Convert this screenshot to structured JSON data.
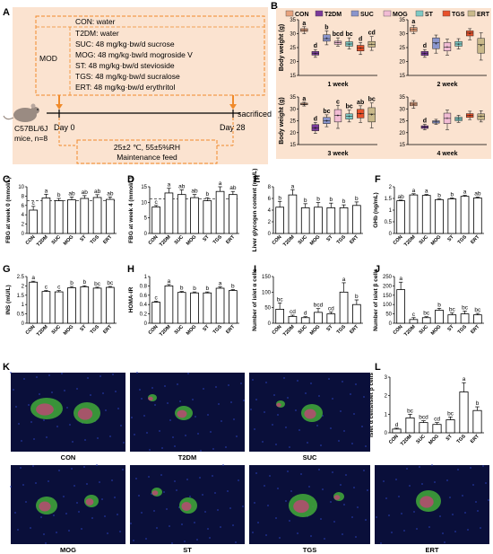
{
  "groups": [
    "CON",
    "T2DM",
    "SUC",
    "MOG",
    "ST",
    "TGS",
    "ERT"
  ],
  "group_colors": [
    "#e8a37e",
    "#7a3a9a",
    "#8a95cc",
    "#f2bcd4",
    "#7fc9c4",
    "#e8512a",
    "#c9b98a"
  ],
  "panelA": {
    "letter": "A",
    "con_line": "CON: water",
    "mod_label": "MOD",
    "mod_lines": [
      "T2DM: water",
      "SUC: 48 mg/kg·bw/d sucrose",
      "MOG: 48 mg/kg·bw/d mogroside V",
      "ST: 48 mg/kg·bw/d stevioside",
      "TGS: 48 mg/kg·bw/d sucralose",
      "ERT: 48 mg/kg·bw/d erythritol"
    ],
    "mouse_l1": "C57BL/6J",
    "mouse_l2": "mice, n=8",
    "day0": "Day 0",
    "day28": "Day 28",
    "sacrificed": "sacrificed",
    "cond1": "25±2 ℃,  55±5%RH",
    "cond2": "Maintenance feed"
  },
  "panelB": {
    "letter": "B",
    "ylabel": "Body weight (g)",
    "titles": [
      "1 week",
      "2 week",
      "3 week",
      "4 week"
    ]
  },
  "micro_labels": [
    "CON",
    "T2DM",
    "SUC",
    "MOG",
    "ST",
    "TGS",
    "ERT"
  ],
  "chart_data": [
    {
      "panel": "B1",
      "type": "box",
      "title": "1 week",
      "ylabel": "Body weight (g)",
      "ylim": [
        15,
        35
      ],
      "yticks": [
        15,
        20,
        25,
        30,
        35
      ],
      "categories": [
        "CON",
        "T2DM",
        "SUC",
        "MOG",
        "ST",
        "TGS",
        "ERT"
      ],
      "boxes": [
        {
          "min": 30,
          "q1": 30.8,
          "med": 31.2,
          "q3": 31.8,
          "max": 32.5,
          "mean": 31.2
        },
        {
          "min": 21.5,
          "q1": 22.3,
          "med": 22.9,
          "q3": 23.6,
          "max": 24.3,
          "mean": 22.9
        },
        {
          "min": 26,
          "q1": 27.3,
          "med": 28.2,
          "q3": 29.6,
          "max": 31,
          "mean": 28.3
        },
        {
          "min": 25.5,
          "q1": 26.2,
          "med": 26.8,
          "q3": 27.3,
          "max": 28.5,
          "mean": 26.8
        },
        {
          "min": 24.5,
          "q1": 25.5,
          "med": 26.3,
          "q3": 27.1,
          "max": 28.5,
          "mean": 26.3
        },
        {
          "min": 22.5,
          "q1": 23.8,
          "med": 24.8,
          "q3": 25.8,
          "max": 26.8,
          "mean": 24.8
        },
        {
          "min": 24,
          "q1": 25.2,
          "med": 26.2,
          "q3": 27.2,
          "max": 29,
          "mean": 26.2
        }
      ],
      "letters": [
        "a",
        "d",
        "b",
        "bcd",
        "bc",
        "d",
        "cd"
      ]
    },
    {
      "panel": "B2",
      "type": "box",
      "title": "2 week",
      "ylabel": "",
      "ylim": [
        15,
        35
      ],
      "yticks": [
        15,
        20,
        25,
        30,
        35
      ],
      "categories": [
        "CON",
        "T2DM",
        "SUC",
        "MOG",
        "ST",
        "TGS",
        "ERT"
      ],
      "boxes": [
        {
          "min": 30,
          "q1": 30.8,
          "med": 31.5,
          "q3": 32.2,
          "max": 33,
          "mean": 31.5
        },
        {
          "min": 21.5,
          "q1": 22.2,
          "med": 22.9,
          "q3": 23.6,
          "max": 24.3,
          "mean": 22.9
        },
        {
          "min": 23,
          "q1": 24.6,
          "med": 26.8,
          "q3": 28.5,
          "max": 29.5,
          "mean": 26.4
        },
        {
          "min": 22.3,
          "q1": 23.8,
          "med": 25.2,
          "q3": 26.8,
          "max": 28,
          "mean": 25.2
        },
        {
          "min": 24.5,
          "q1": 25.5,
          "med": 26.3,
          "q3": 27.2,
          "max": 28.2,
          "mean": 26.3
        },
        {
          "min": 27.8,
          "q1": 29.2,
          "med": 30.2,
          "q3": 31,
          "max": 31.8,
          "mean": 30.1
        },
        {
          "min": 20.5,
          "q1": 23,
          "med": 26.2,
          "q3": 28.3,
          "max": 30.3,
          "mean": 25.8
        }
      ],
      "letters": [
        "a",
        "d",
        "",
        "",
        "",
        "",
        ""
      ]
    },
    {
      "panel": "B3",
      "type": "box",
      "title": "3 week",
      "ylabel": "Body weight (g)",
      "ylim": [
        15,
        35
      ],
      "yticks": [
        15,
        20,
        25,
        30,
        35
      ],
      "categories": [
        "CON",
        "T2DM",
        "SUC",
        "MOG",
        "ST",
        "TGS",
        "ERT"
      ],
      "boxes": [
        {
          "min": 31.2,
          "q1": 31.7,
          "med": 32,
          "q3": 32.4,
          "max": 32.8,
          "mean": 32
        },
        {
          "min": 19.7,
          "q1": 20.8,
          "med": 22,
          "q3": 23.4,
          "max": 24.3,
          "mean": 22
        },
        {
          "min": 22.5,
          "q1": 23.8,
          "med": 25,
          "q3": 26.4,
          "max": 27.5,
          "mean": 25
        },
        {
          "min": 21.8,
          "q1": 24.5,
          "med": 27.3,
          "q3": 29.7,
          "max": 31.5,
          "mean": 27.1
        },
        {
          "min": 24.5,
          "q1": 25.7,
          "med": 26.8,
          "q3": 27.9,
          "max": 29.5,
          "mean": 26.8
        },
        {
          "min": 24.3,
          "q1": 26.2,
          "med": 28,
          "q3": 29.8,
          "max": 31.3,
          "mean": 28
        },
        {
          "min": 22,
          "q1": 24.5,
          "med": 27.8,
          "q3": 30.5,
          "max": 32.5,
          "mean": 27.5
        }
      ],
      "letters": [
        "a",
        "d",
        "bc",
        "c",
        "bc",
        "ab",
        "bc"
      ]
    },
    {
      "panel": "B4",
      "type": "box",
      "title": "4 week",
      "ylabel": "",
      "ylim": [
        15,
        35
      ],
      "yticks": [
        15,
        20,
        25,
        30,
        35
      ],
      "categories": [
        "CON",
        "T2DM",
        "SUC",
        "MOG",
        "ST",
        "TGS",
        "ERT"
      ],
      "boxes": [
        {
          "min": 30.2,
          "q1": 31.3,
          "med": 32,
          "q3": 32.7,
          "max": 33.5,
          "mean": 32
        },
        {
          "min": 21.2,
          "q1": 21.8,
          "med": 22.4,
          "q3": 22.9,
          "max": 23.5,
          "mean": 22.4
        },
        {
          "min": 23.5,
          "q1": 24,
          "med": 24.5,
          "q3": 25,
          "max": 25.6,
          "mean": 24.5
        },
        {
          "min": 21.3,
          "q1": 23.8,
          "med": 26,
          "q3": 28.2,
          "max": 29.5,
          "mean": 26
        },
        {
          "min": 24.3,
          "q1": 25,
          "med": 25.8,
          "q3": 26.5,
          "max": 27.3,
          "mean": 25.8
        },
        {
          "min": 25.5,
          "q1": 26.4,
          "med": 27.2,
          "q3": 28,
          "max": 29,
          "mean": 27.2
        },
        {
          "min": 24.5,
          "q1": 25.5,
          "med": 26.8,
          "q3": 27.9,
          "max": 29.2,
          "mean": 26.8
        }
      ],
      "letters": [
        "",
        "d",
        "",
        "",
        "",
        "",
        ""
      ]
    },
    {
      "panel": "C",
      "type": "bar",
      "ylabel": "FBG at week 0 (mmol/L)",
      "ylim": [
        0,
        10
      ],
      "yticks": [
        0,
        2,
        4,
        6,
        8,
        10
      ],
      "dashed": 7.0,
      "categories": [
        "CON",
        "T2DM",
        "SUC",
        "MOG",
        "ST",
        "TGS",
        "ERT"
      ],
      "values": [
        5.0,
        7.6,
        7.0,
        7.2,
        7.5,
        7.7,
        7.3
      ],
      "errors": [
        0.8,
        0.8,
        0.5,
        0.6,
        0.6,
        0.6,
        0.5
      ],
      "letters": [
        "c",
        "a",
        "b",
        "ab",
        "ab",
        "ab",
        "ab"
      ]
    },
    {
      "panel": "D",
      "type": "bar",
      "ylabel": "FBG at week 4 (mmol/L)",
      "ylim": [
        0,
        15
      ],
      "yticks": [
        0,
        5,
        10,
        15
      ],
      "dashed": 11.1,
      "categories": [
        "CON",
        "T2DM",
        "SUC",
        "MOG",
        "ST",
        "TGS",
        "ERT"
      ],
      "values": [
        8.5,
        13.0,
        12.5,
        11.5,
        10.5,
        13.5,
        12.5
      ],
      "errors": [
        0.5,
        1.5,
        1.5,
        1.0,
        1.0,
        1.5,
        1.0
      ],
      "letters": [
        "c",
        "a",
        "ab",
        "ab",
        "b",
        "a",
        "ab"
      ]
    },
    {
      "panel": "E",
      "type": "bar",
      "ylabel": "Liver glycogen content (mg/L)",
      "ylim": [
        0,
        8
      ],
      "yticks": [
        0,
        2,
        4,
        6,
        8
      ],
      "categories": [
        "CON",
        "T2DM",
        "SUC",
        "MOG",
        "ST",
        "TGS",
        "ERT"
      ],
      "values": [
        4.5,
        6.6,
        4.4,
        4.5,
        4.4,
        4.4,
        4.8
      ],
      "errors": [
        1.0,
        0.9,
        0.7,
        0.8,
        0.8,
        0.5,
        0.6
      ],
      "letters": [
        "b",
        "a",
        "b",
        "b",
        "b",
        "b",
        "b"
      ]
    },
    {
      "panel": "F",
      "type": "bar",
      "ylabel": "GHb (ng/mL)",
      "ylim": [
        0,
        2.0
      ],
      "yticks": [
        0,
        0.5,
        1.0,
        1.5,
        2.0
      ],
      "categories": [
        "CON",
        "T2DM",
        "SUC",
        "MOG",
        "ST",
        "TGS",
        "ERT"
      ],
      "values": [
        1.4,
        1.65,
        1.63,
        1.45,
        1.48,
        1.59,
        1.52
      ],
      "errors": [
        0.03,
        0.05,
        0.04,
        0.04,
        0.04,
        0.04,
        0.04
      ],
      "letters": [
        "ab",
        "a",
        "a",
        "b",
        "b",
        "a",
        "ab"
      ]
    },
    {
      "panel": "G",
      "type": "bar",
      "ylabel": "INS (mU/L)",
      "ylim": [
        0,
        2.5
      ],
      "yticks": [
        0,
        0.5,
        1.0,
        1.5,
        2.0,
        2.5
      ],
      "categories": [
        "CON",
        "T2DM",
        "SUC",
        "MOG",
        "ST",
        "TGS",
        "ERT"
      ],
      "values": [
        2.2,
        1.7,
        1.68,
        1.9,
        1.95,
        1.88,
        1.92
      ],
      "errors": [
        0.05,
        0.05,
        0.07,
        0.07,
        0.06,
        0.05,
        0.05
      ],
      "letters": [
        "a",
        "c",
        "c",
        "b",
        "b",
        "bc",
        "bc"
      ]
    },
    {
      "panel": "H",
      "type": "bar",
      "ylabel": "HOMA-IR",
      "ylim": [
        0,
        1.0
      ],
      "yticks": [
        0,
        0.2,
        0.4,
        0.6,
        0.8,
        1.0
      ],
      "categories": [
        "CON",
        "T2DM",
        "SUC",
        "MOG",
        "ST",
        "TGS",
        "ERT"
      ],
      "values": [
        0.45,
        0.8,
        0.66,
        0.65,
        0.65,
        0.75,
        0.7
      ],
      "errors": [
        0.02,
        0.03,
        0.02,
        0.02,
        0.02,
        0.03,
        0.02
      ],
      "letters": [
        "c",
        "a",
        "b",
        "b",
        "b",
        "a",
        "b"
      ]
    },
    {
      "panel": "I",
      "type": "bar",
      "ylabel": "Number of islet α cells",
      "ylim": [
        0,
        150
      ],
      "yticks": [
        0,
        50,
        100,
        150
      ],
      "categories": [
        "CON",
        "T2DM",
        "SUC",
        "MOG",
        "ST",
        "TGS",
        "ERT"
      ],
      "values": [
        45,
        22,
        18,
        35,
        30,
        100,
        60
      ],
      "errors": [
        20,
        4,
        3,
        12,
        6,
        30,
        15
      ],
      "letters": [
        "bc",
        "cd",
        "d",
        "bcd",
        "cd",
        "a",
        "b"
      ]
    },
    {
      "panel": "J",
      "type": "bar",
      "ylabel": "Number of islet β cells",
      "ylim": [
        0,
        250
      ],
      "yticks": [
        0,
        50,
        100,
        150,
        200,
        250
      ],
      "categories": [
        "CON",
        "T2DM",
        "SUC",
        "MOG",
        "ST",
        "TGS",
        "ERT"
      ],
      "values": [
        180,
        20,
        30,
        70,
        45,
        50,
        45
      ],
      "errors": [
        40,
        10,
        5,
        10,
        10,
        15,
        8
      ],
      "letters": [
        "a",
        "c",
        "bc",
        "b",
        "bc",
        "bc",
        "bc"
      ]
    },
    {
      "panel": "L",
      "type": "bar",
      "ylabel": "Islet α cells/Islet β cells",
      "ylim": [
        0,
        3
      ],
      "yticks": [
        0,
        1,
        2,
        3
      ],
      "categories": [
        "CON",
        "T2DM",
        "SUC",
        "MOG",
        "ST",
        "TGS",
        "ERT"
      ],
      "values": [
        0.2,
        0.8,
        0.55,
        0.45,
        0.7,
        2.2,
        1.2
      ],
      "errors": [
        0.05,
        0.2,
        0.1,
        0.1,
        0.15,
        0.5,
        0.2
      ],
      "letters": [
        "d",
        "bc",
        "bcd",
        "cd",
        "bc",
        "a",
        "b"
      ]
    }
  ]
}
